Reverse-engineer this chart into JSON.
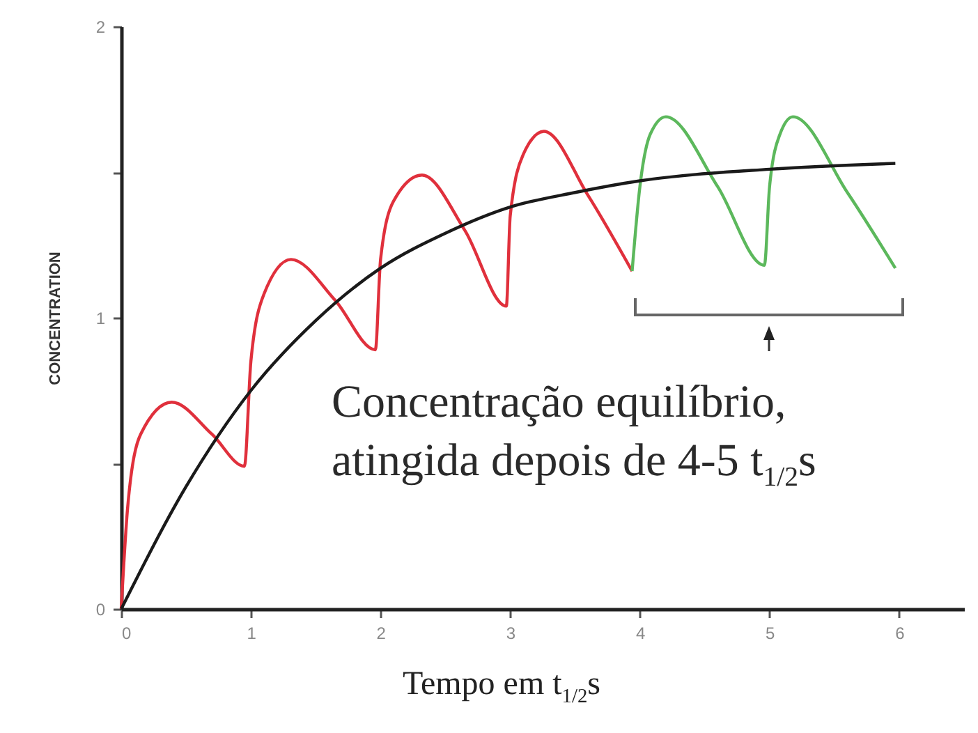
{
  "chart_data": {
    "type": "line",
    "xlabel": "Tempo em t$_{1/2}$s",
    "ylabel": "CONCENTRATION",
    "xlim": [
      0,
      6.5
    ],
    "xticks": [
      0,
      1,
      2,
      3,
      4,
      5,
      6
    ],
    "ylim": [
      0,
      2
    ],
    "yticks": [
      0,
      {
        "value": 0.5,
        "label": null
      },
      1,
      {
        "value": 1.5,
        "label": null
      },
      2
    ],
    "grid": false,
    "marker": "none",
    "line_style": "solid",
    "series": [
      {
        "color": "#e0303c",
        "x": [
          0,
          0.05,
          0.15,
          0.39,
          0.7,
          0.95,
          1.0,
          1.1,
          1.31,
          1.65,
          1.96,
          2.0,
          2.1,
          2.32,
          2.65,
          2.97,
          3.0,
          3.1,
          3.26,
          3.6,
          3.94
        ],
        "values": [
          0,
          0.35,
          0.6,
          0.71,
          0.6,
          0.49,
          0.85,
          1.08,
          1.2,
          1.06,
          0.89,
          1.2,
          1.4,
          1.49,
          1.3,
          1.04,
          1.35,
          1.56,
          1.64,
          1.42,
          1.16
        ]
      },
      {
        "color": "#5cb85c",
        "x": [
          3.94,
          4.0,
          4.08,
          4.2,
          4.6,
          4.96,
          5.0,
          5.08,
          5.18,
          5.6,
          5.97
        ],
        "values": [
          1.16,
          1.45,
          1.63,
          1.69,
          1.45,
          1.18,
          1.45,
          1.63,
          1.69,
          1.43,
          1.17
        ]
      },
      {
        "color": "#1a1a1a",
        "x": [
          0,
          0.5,
          1,
          1.5,
          2,
          2.5,
          3,
          3.5,
          4,
          5,
          5.97
        ],
        "values": [
          0,
          0.42,
          0.75,
          0.99,
          1.17,
          1.29,
          1.38,
          1.43,
          1.47,
          1.51,
          1.53
        ]
      }
    ],
    "annotations": [
      {
        "text": "Concentração equilíbrio, atingida depois de 4-5 t$_{1/2}$s",
        "x": 5,
        "y": 0.95
      }
    ]
  }
}
